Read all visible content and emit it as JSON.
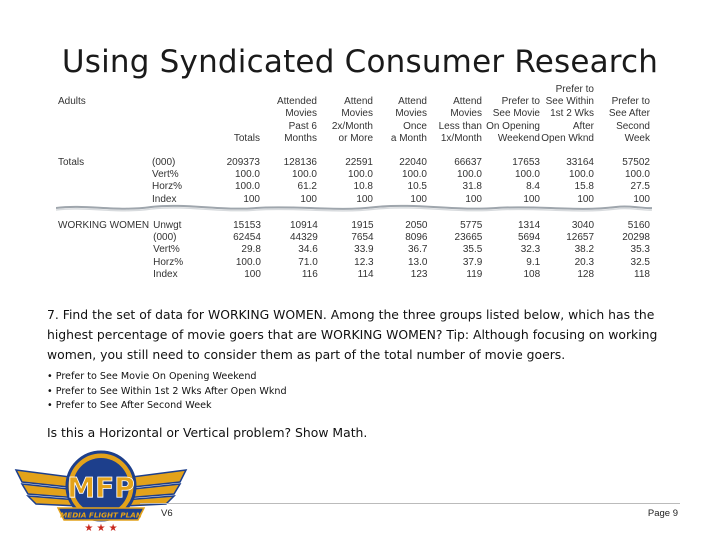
{
  "title": "Using Syndicated Consumer Research",
  "table": {
    "group_label": "Adults",
    "columns": [
      [
        "",
        "",
        "",
        "Totals"
      ],
      [
        "",
        "Attended",
        "Movies",
        "Past 6",
        "Months"
      ],
      [
        "",
        "Attend",
        "Movies",
        "2x/Month",
        "or More"
      ],
      [
        "",
        "Attend",
        "Movies",
        "Once",
        "a Month"
      ],
      [
        "",
        "Attend",
        "Movies",
        "Less than",
        "1x/Month"
      ],
      [
        "",
        "Prefer to",
        "See Movie",
        "On Opening",
        "Weekend"
      ],
      [
        "Prefer to",
        "See Within",
        "1st 2 Wks",
        "After",
        "Open Wknd"
      ],
      [
        "",
        "Prefer to",
        "See After",
        "Second",
        "Week"
      ]
    ],
    "totals": {
      "label": "Totals",
      "rows": [
        {
          "metric": "(000)",
          "values": [
            "209373",
            "128136",
            "22591",
            "22040",
            "66637",
            "17653",
            "33164",
            "57502"
          ]
        },
        {
          "metric": "Vert%",
          "values": [
            "100.0",
            "100.0",
            "100.0",
            "100.0",
            "100.0",
            "100.0",
            "100.0",
            "100.0"
          ]
        },
        {
          "metric": "Horz%",
          "values": [
            "100.0",
            "61.2",
            "10.8",
            "10.5",
            "31.8",
            "8.4",
            "15.8",
            "27.5"
          ]
        },
        {
          "metric": "Index",
          "values": [
            "100",
            "100",
            "100",
            "100",
            "100",
            "100",
            "100",
            "100"
          ]
        }
      ]
    },
    "working_women": {
      "label": "WORKING WOMEN",
      "rows": [
        {
          "metric": "Unwgt",
          "values": [
            "15153",
            "10914",
            "1915",
            "2050",
            "5775",
            "1314",
            "3040",
            "5160"
          ]
        },
        {
          "metric": "(000)",
          "values": [
            "62454",
            "44329",
            "7654",
            "8096",
            "23665",
            "5694",
            "12657",
            "20298"
          ]
        },
        {
          "metric": "Vert%",
          "values": [
            "29.8",
            "34.6",
            "33.9",
            "36.7",
            "35.5",
            "32.3",
            "38.2",
            "35.3"
          ]
        },
        {
          "metric": "Horz%",
          "values": [
            "100.0",
            "71.0",
            "12.3",
            "13.0",
            "37.9",
            "9.1",
            "20.3",
            "32.5"
          ]
        },
        {
          "metric": "Index",
          "values": [
            "100",
            "116",
            "114",
            "123",
            "119",
            "108",
            "128",
            "118"
          ]
        }
      ]
    }
  },
  "question": "7. Find the set of data for WORKING WOMEN.  Among the three groups listed below, which has the highest percentage of movie goers that are WORKING WOMEN? Tip: Although focusing on working women, you still need to consider them as part of the total number of movie goers.",
  "options": [
    "• Prefer to See Movie On Opening Weekend",
    "• Prefer to See Within 1st 2 Wks After Open Wknd",
    "• Prefer to See After Second Week"
  ],
  "ask": "Is this a Horizontal or Vertical problem?  Show Math.",
  "logo": {
    "main": "MFP",
    "banner": "MEDIA FLIGHT PLAN"
  },
  "footer": {
    "version": "V6",
    "page": "Page 9"
  },
  "colors": {
    "logo_blue": "#1d3f8c",
    "logo_gold": "#e3a21a",
    "banner_red": "#c8281e"
  }
}
